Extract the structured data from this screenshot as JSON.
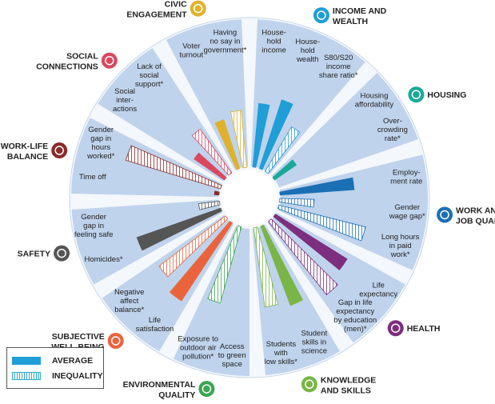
{
  "chart_data": {
    "type": "radial-bar",
    "legend": {
      "average": "AVERAGE",
      "inequality": "INEQUALITY"
    },
    "series_colors": {
      "inequality_outline": "#2fb0c6",
      "ring": "#bfd3ec"
    },
    "dimensions": [
      {
        "name": "INCOME AND\nWEALTH",
        "icon": "money-icon",
        "color": "#1f9ed8",
        "indicators": [
          {
            "label": "House-\nhold\nincome",
            "type": "average",
            "value": 0.62
          },
          {
            "label": "House-\nhold\nwealth",
            "type": "average",
            "value": 0.7
          },
          {
            "label": "S80/S20\nincome\nshare ratio*",
            "type": "inequality",
            "value": 0.5
          }
        ]
      },
      {
        "name": "HOUSING",
        "icon": "house-icon",
        "color": "#1aa89a",
        "indicators": [
          {
            "label": "Housing\naffordability",
            "type": "average",
            "value": 0.26
          },
          {
            "label": "Over-\ncrowding\nrate*",
            "type": "inequality",
            "value": 0.0
          }
        ]
      },
      {
        "name": "WORK AND\nJOB QUALITY",
        "icon": "briefcase-icon",
        "color": "#1b6fb5",
        "indicators": [
          {
            "label": "Employ-\nment rate",
            "type": "average",
            "value": 0.72
          },
          {
            "label": "Gender\nwage gap*",
            "type": "inequality",
            "value": 0.33
          },
          {
            "label": "Long hours\nin paid\nwork*",
            "type": "inequality",
            "value": 0.86
          }
        ]
      },
      {
        "name": "HEALTH",
        "icon": "cross-icon",
        "color": "#7d2e7e",
        "indicators": [
          {
            "label": "Life\nexpectancy",
            "type": "average",
            "value": 0.82
          },
          {
            "label": "Gap in life\nexpectancy\nby education\n(men)*",
            "type": "inequality",
            "value": 0.9
          }
        ]
      },
      {
        "name": "KNOWLEDGE\nAND SKILLS",
        "icon": "book-icon",
        "color": "#7ab547",
        "indicators": [
          {
            "label": "Student\nskills in\nscience",
            "type": "average",
            "value": 0.82
          },
          {
            "label": "Students\nwith\nlow skills*",
            "type": "inequality",
            "value": 0.77
          }
        ]
      },
      {
        "name": "ENVIRONMENTAL\nQUALITY",
        "icon": "tree-icon",
        "color": "#3aa552",
        "indicators": [
          {
            "label": "Access\nto green\nspace",
            "type": "average",
            "value": 0.0
          },
          {
            "label": "Exposure to\noutdoor air\npollution*",
            "type": "inequality",
            "value": 0.76
          }
        ]
      },
      {
        "name": "SUBJECTIVE\nWELL-BEING",
        "icon": "heart-icon",
        "color": "#e9643d",
        "indicators": [
          {
            "label": "Life\nsatisfaction",
            "type": "average",
            "value": 0.9
          },
          {
            "label": "Negative\naffect\nbalance*",
            "type": "inequality",
            "value": 0.8
          }
        ]
      },
      {
        "name": "SAFETY",
        "icon": "runner-icon",
        "color": "#555555",
        "indicators": [
          {
            "label": "Homicides*",
            "type": "average",
            "value": 0.86
          },
          {
            "label": "Gender\ngap in\nfeeling safe",
            "type": "inequality",
            "value": 0.2
          }
        ]
      },
      {
        "name": "WORK-LIFE\nBALANCE",
        "icon": "scales-icon",
        "color": "#8b2a2a",
        "indicators": [
          {
            "label": "Time off",
            "type": "average",
            "value": 0.05
          },
          {
            "label": "Gender\ngap in\nhours\nworked*",
            "type": "inequality",
            "value": 0.95
          }
        ]
      },
      {
        "name": "SOCIAL\nCONNECTIONS",
        "icon": "people-icon",
        "color": "#d9485f",
        "indicators": [
          {
            "label": "Social\ninter-\nactions",
            "type": "average",
            "value": 0.36
          },
          {
            "label": "Lack of\nsocial\nsupport*",
            "type": "inequality",
            "value": 0.52
          }
        ]
      },
      {
        "name": "CIVIC\nENGAGEMENT",
        "icon": "ballot-icon",
        "color": "#e0b12b",
        "indicators": [
          {
            "label": "Voter\nturnout",
            "type": "average",
            "value": 0.5
          },
          {
            "label": "Having\nno say in\ngovernment*",
            "type": "inequality",
            "value": 0.55
          }
        ]
      }
    ]
  }
}
